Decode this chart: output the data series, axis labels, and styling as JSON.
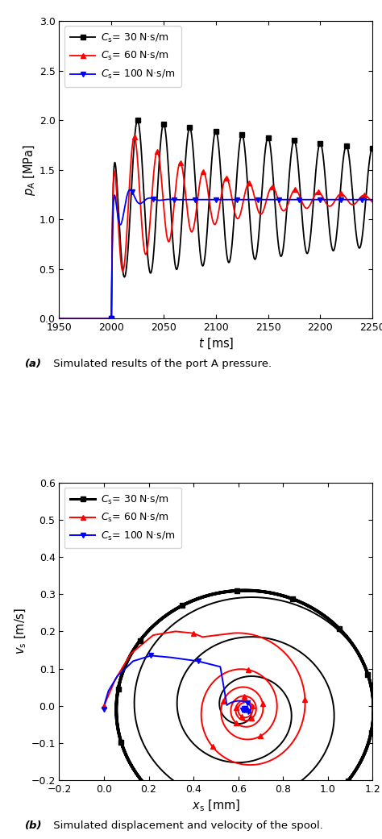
{
  "fig_width": 4.74,
  "fig_height": 10.41,
  "dpi": 100,
  "plot_a": {
    "xlabel": "$t$ [ms]",
    "ylabel": "$p_{\\mathrm{A}}$ [MPa]",
    "xlim": [
      1950,
      2250
    ],
    "ylim": [
      0.0,
      3.0
    ],
    "xticks": [
      1950,
      2000,
      2050,
      2100,
      2150,
      2200,
      2250
    ],
    "yticks": [
      0.0,
      0.5,
      1.0,
      1.5,
      2.0,
      2.5,
      3.0
    ],
    "caption_bold": "(a)",
    "caption_rest": " Simulated results of the port A pressure."
  },
  "plot_b": {
    "xlabel": "$x_{\\mathrm{s}}$ [mm]",
    "ylabel": "$v_{\\mathrm{s}}$ [m/s]",
    "xlim": [
      -0.2,
      1.2
    ],
    "ylim": [
      -0.2,
      0.6
    ],
    "xticks": [
      -0.2,
      0.0,
      0.2,
      0.4,
      0.6,
      0.8,
      1.0,
      1.2
    ],
    "yticks": [
      -0.2,
      -0.1,
      0.0,
      0.1,
      0.2,
      0.3,
      0.4,
      0.5,
      0.6
    ],
    "caption_bold": "(b)",
    "caption_rest": " Simulated displacement and velocity of the spool."
  }
}
